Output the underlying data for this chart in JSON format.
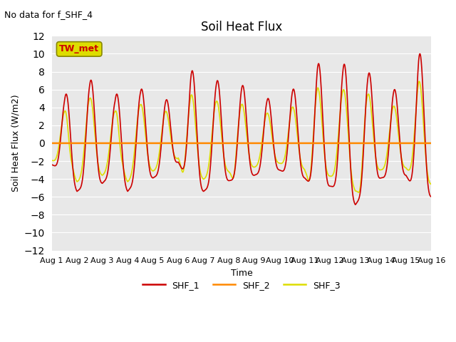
{
  "title": "Soil Heat Flux",
  "subtitle": "No data for f_SHF_4",
  "ylabel": "Soil Heat Flux (W/m2)",
  "xlabel": "Time",
  "legend_label": "TW_met",
  "ylim": [
    -12,
    12
  ],
  "yticks": [
    -12,
    -10,
    -8,
    -6,
    -4,
    -2,
    0,
    2,
    4,
    6,
    8,
    10,
    12
  ],
  "xtick_labels": [
    "Aug 1",
    "Aug 2",
    "Aug 3",
    "Aug 4",
    "Aug 5",
    "Aug 6",
    "Aug 7",
    "Aug 8",
    "Aug 9",
    "Aug 10",
    "Aug 11",
    "Aug 12",
    "Aug 13",
    "Aug 14",
    "Aug 15",
    "Aug 16"
  ],
  "color_shf1": "#cc0000",
  "color_shf2": "#ff8800",
  "color_shf3": "#dddd00",
  "bg_color": "#e8e8e8",
  "legend_box_facecolor": "#dddd00",
  "legend_box_edgecolor": "#888800",
  "legend_box_text_color": "#cc0000",
  "n_days": 15
}
